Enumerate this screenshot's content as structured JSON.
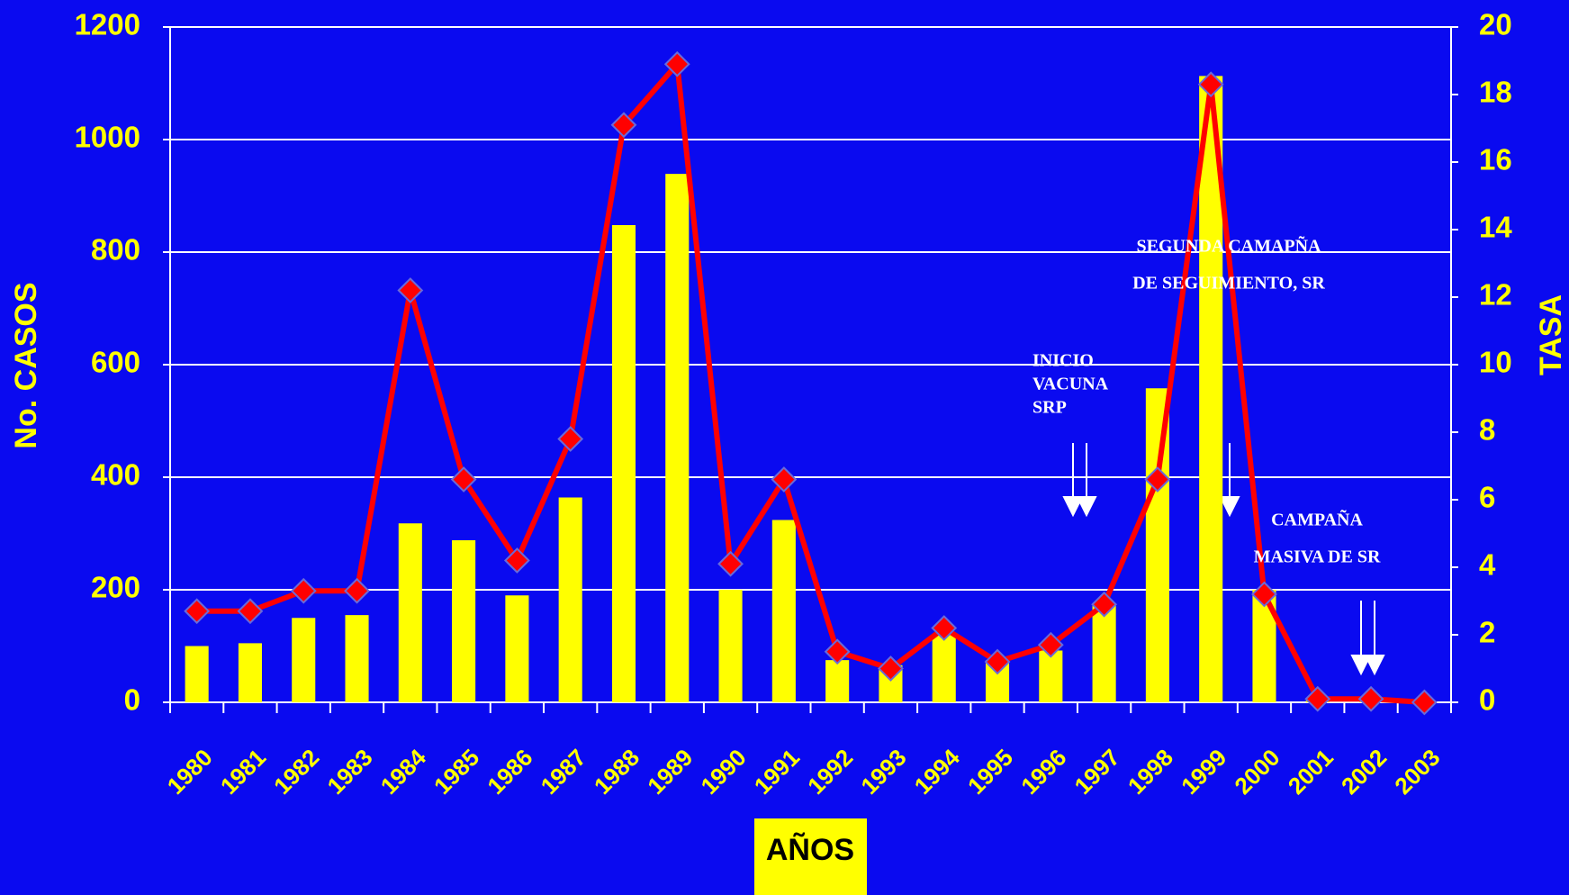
{
  "chart_data": {
    "type": "bar",
    "categories": [
      "1980",
      "1981",
      "1982",
      "1983",
      "1984",
      "1985",
      "1986",
      "1987",
      "1988",
      "1989",
      "1990",
      "1991",
      "1992",
      "1993",
      "1994",
      "1995",
      "1996",
      "1997",
      "1998",
      "1999",
      "2000",
      "2001",
      "2002",
      "2003"
    ],
    "series": [
      {
        "type": "bar",
        "color": "#ffff00",
        "values": [
          100,
          105,
          150,
          155,
          318,
          288,
          190,
          364,
          848,
          939,
          200,
          324,
          75,
          66,
          120,
          75,
          92,
          172,
          558,
          1113,
          200,
          3,
          1,
          0
        ]
      },
      {
        "type": "line",
        "axis": "y2",
        "color": "#ff0000",
        "values": [
          2.7,
          2.7,
          3.3,
          3.3,
          12.2,
          6.6,
          4.2,
          7.8,
          17.1,
          18.9,
          4.1,
          6.6,
          1.5,
          1.0,
          2.2,
          1.2,
          1.7,
          2.9,
          6.6,
          18.3,
          3.2,
          0.1,
          0.1,
          0
        ]
      }
    ],
    "ylim": [
      0,
      1200
    ],
    "yticks": [
      0,
      200,
      400,
      600,
      800,
      1000,
      1200
    ],
    "y2lim": [
      0,
      20
    ],
    "y2ticks": [
      0,
      2,
      4,
      6,
      8,
      10,
      12,
      14,
      16,
      18,
      20
    ],
    "grid": true,
    "y_label": "No. CASOS",
    "y2_label": "TASA",
    "x_label": "AÑOS",
    "annotations": [
      [
        "SEGUNDA CAMAPÑA",
        "DE SEGUIMIENTO, SR"
      ],
      [
        "INICIO",
        "VACUNA",
        "SRP"
      ],
      [
        "CAMPAÑA",
        "MASIVA DE SR"
      ]
    ]
  }
}
